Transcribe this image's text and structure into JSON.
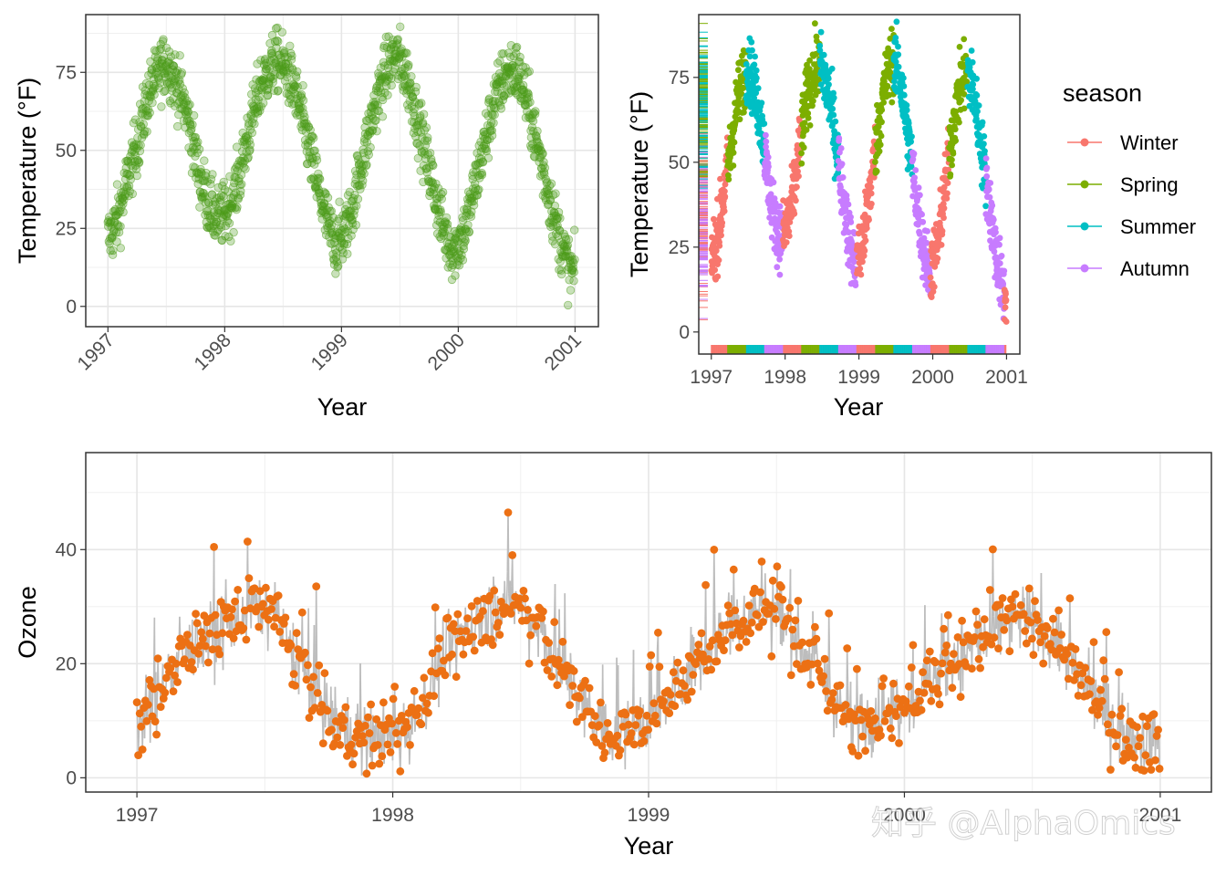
{
  "watermark": "知乎 @AlphaOmics",
  "chart_data": [
    {
      "id": "temp_scatter",
      "type": "scatter",
      "xlabel": "Year",
      "ylabel": "Temperature (°F)",
      "xlim": [
        1996.81,
        2001.2
      ],
      "ylim": [
        -6.5,
        93.5
      ],
      "xticks": [
        1997,
        1998,
        1999,
        2000,
        2001
      ],
      "xtick_labels": [
        "1997",
        "1998",
        "1999",
        "2000",
        "2001"
      ],
      "yticks": [
        0,
        25,
        50,
        75
      ],
      "ytick_labels": [
        "0",
        "25",
        "50",
        "75"
      ],
      "color": "#4d9a1a",
      "alpha": 0.3,
      "x_tick_rotation": -45,
      "grid": true,
      "series": [
        {
          "name": "temp",
          "x": [
            1997.0,
            1997.05,
            1997.1,
            1997.15,
            1997.2,
            1997.25,
            1997.3,
            1997.35,
            1997.4,
            1997.45,
            1997.5,
            1997.55,
            1997.6,
            1997.65,
            1997.7,
            1997.75,
            1997.8,
            1997.85,
            1997.9,
            1997.95,
            1998.0,
            1998.05,
            1998.1,
            1998.15,
            1998.2,
            1998.25,
            1998.3,
            1998.35,
            1998.4,
            1998.45,
            1998.5,
            1998.55,
            1998.6,
            1998.65,
            1998.7,
            1998.75,
            1998.8,
            1998.85,
            1998.9,
            1998.95,
            1999.0,
            1999.05,
            1999.1,
            1999.15,
            1999.2,
            1999.25,
            1999.3,
            1999.35,
            1999.4,
            1999.45,
            1999.5,
            1999.55,
            1999.6,
            1999.65,
            1999.7,
            1999.75,
            1999.8,
            1999.85,
            1999.9,
            1999.95,
            2000.0,
            2000.05,
            2000.1,
            2000.15,
            2000.2,
            2000.25,
            2000.3,
            2000.35,
            2000.4,
            2000.45,
            2000.5,
            2000.55,
            2000.6,
            2000.65,
            2000.7,
            2000.75,
            2000.8,
            2000.85,
            2000.9,
            2000.95,
            2001.0
          ],
          "y": [
            22,
            25,
            30,
            38,
            45,
            52,
            60,
            68,
            72,
            76,
            78,
            75,
            70,
            65,
            58,
            48,
            40,
            34,
            30,
            28,
            30,
            33,
            38,
            46,
            55,
            62,
            70,
            74,
            77,
            79,
            77,
            74,
            69,
            62,
            54,
            46,
            38,
            30,
            24,
            20,
            22,
            26,
            33,
            42,
            50,
            58,
            66,
            72,
            77,
            80,
            79,
            75,
            68,
            60,
            52,
            44,
            36,
            28,
            22,
            18,
            20,
            24,
            31,
            40,
            48,
            56,
            64,
            70,
            74,
            76,
            75,
            71,
            64,
            56,
            48,
            40,
            32,
            24,
            18,
            12,
            10
          ]
        }
      ]
    },
    {
      "id": "temp_season",
      "type": "scatter",
      "xlabel": "Year",
      "ylabel": "Temperature (°F)",
      "xlim": [
        1996.83,
        2001.18
      ],
      "ylim": [
        -6.5,
        93.5
      ],
      "xticks": [
        1997,
        1998,
        1999,
        2000,
        2001
      ],
      "xtick_labels": [
        "1997",
        "1998",
        "1999",
        "2000",
        "2001"
      ],
      "yticks": [
        0,
        25,
        50,
        75
      ],
      "ytick_labels": [
        "0",
        "25",
        "50",
        "75"
      ],
      "grid": false,
      "rug": true,
      "legend": {
        "title": "season",
        "position": "right",
        "entries": [
          {
            "label": "Winter",
            "color": "#f8766d"
          },
          {
            "label": "Spring",
            "color": "#7cae00"
          },
          {
            "label": "Summer",
            "color": "#00bfc4"
          },
          {
            "label": "Autumn",
            "color": "#c77cff"
          }
        ]
      },
      "season_order": [
        "Winter",
        "Spring",
        "Summer",
        "Autumn"
      ]
    },
    {
      "id": "ozone_lollipop",
      "type": "scatter",
      "style": "lollipop",
      "xlabel": "Year",
      "ylabel": "Ozone",
      "xlim": [
        1996.8,
        2001.2
      ],
      "ylim": [
        -2.5,
        57
      ],
      "xticks": [
        1997,
        1998,
        1999,
        2000,
        2001
      ],
      "xtick_labels": [
        "1997",
        "1998",
        "1999",
        "2000",
        "2001"
      ],
      "yticks": [
        0,
        20,
        40
      ],
      "ytick_labels": [
        "0",
        "20",
        "40"
      ],
      "point_color": "#ec7014",
      "stem_color": "#bdbdbd",
      "grid": true,
      "series": [
        {
          "name": "ozone",
          "x": [
            1997.0,
            1997.05,
            1997.1,
            1997.15,
            1997.2,
            1997.25,
            1997.3,
            1997.35,
            1997.4,
            1997.45,
            1997.5,
            1997.55,
            1997.6,
            1997.65,
            1997.7,
            1997.75,
            1997.8,
            1997.85,
            1997.9,
            1997.95,
            1998.0,
            1998.05,
            1998.1,
            1998.15,
            1998.2,
            1998.25,
            1998.3,
            1998.35,
            1998.4,
            1998.45,
            1998.5,
            1998.55,
            1998.6,
            1998.65,
            1998.7,
            1998.75,
            1998.8,
            1998.85,
            1998.9,
            1998.95,
            1999.0,
            1999.05,
            1999.1,
            1999.15,
            1999.2,
            1999.25,
            1999.3,
            1999.35,
            1999.4,
            1999.45,
            1999.5,
            1999.55,
            1999.6,
            1999.65,
            1999.7,
            1999.75,
            1999.8,
            1999.85,
            1999.9,
            1999.95,
            2000.0,
            2000.05,
            2000.1,
            2000.15,
            2000.2,
            2000.25,
            2000.3,
            2000.35,
            2000.4,
            2000.45,
            2000.5,
            2000.55,
            2000.6,
            2000.65,
            2000.7,
            2000.75,
            2000.8,
            2000.85,
            2000.9,
            2000.95,
            2001.0
          ],
          "y": [
            9,
            12,
            16,
            19,
            22,
            24,
            25,
            26,
            28,
            30,
            29,
            27,
            23,
            19,
            15,
            11,
            8,
            7,
            7,
            7,
            7,
            8,
            11,
            16,
            21,
            24,
            26,
            28,
            30,
            31,
            30,
            27,
            24,
            20,
            16,
            12,
            9,
            8,
            8,
            9,
            10,
            12,
            15,
            18,
            21,
            24,
            26,
            28,
            29,
            30,
            29,
            26,
            23,
            19,
            15,
            12,
            10,
            10,
            11,
            12,
            13,
            15,
            17,
            19,
            21,
            22,
            24,
            25,
            27,
            28,
            27,
            25,
            23,
            20,
            17,
            14,
            11,
            8,
            7,
            6,
            7
          ]
        }
      ]
    }
  ]
}
